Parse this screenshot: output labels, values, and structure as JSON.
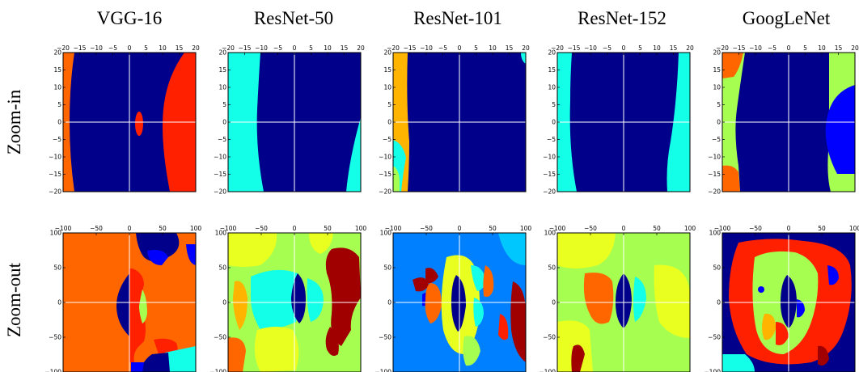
{
  "models": [
    "VGG-16",
    "ResNet-50",
    "ResNet-101",
    "ResNet-152",
    "GoogLeNet"
  ],
  "rows": [
    "Zoom-in",
    "Zoom-out"
  ],
  "axes": {
    "zoom_in": {
      "x_ticks": [
        "−20",
        "−15",
        "−10",
        "−5",
        "0",
        "5",
        "10",
        "15",
        "20"
      ],
      "y_ticks": [
        "20",
        "15",
        "10",
        "5",
        "0",
        "−5",
        "−10",
        "−15",
        "−20"
      ],
      "range": [
        -20,
        20
      ]
    },
    "zoom_out": {
      "x_ticks": [
        "−100",
        "−50",
        "0",
        "50",
        "100"
      ],
      "y_ticks": [
        "100",
        "50",
        "0",
        "−50",
        "−100"
      ],
      "range": [
        -100,
        100
      ]
    }
  },
  "colors": {
    "navy": "#00008b",
    "blue": "#0000ff",
    "azure": "#0080ff",
    "sky": "#00c8ff",
    "cyan": "#13ffe8",
    "green": "#7fff7f",
    "lime": "#a6ff50",
    "yellow": "#e8ff20",
    "orange": "#ff6600",
    "amber": "#ffb400",
    "red": "#ff2000",
    "crimson": "#e00000",
    "maroon": "#a00000",
    "axisline": "#ffffff"
  }
}
